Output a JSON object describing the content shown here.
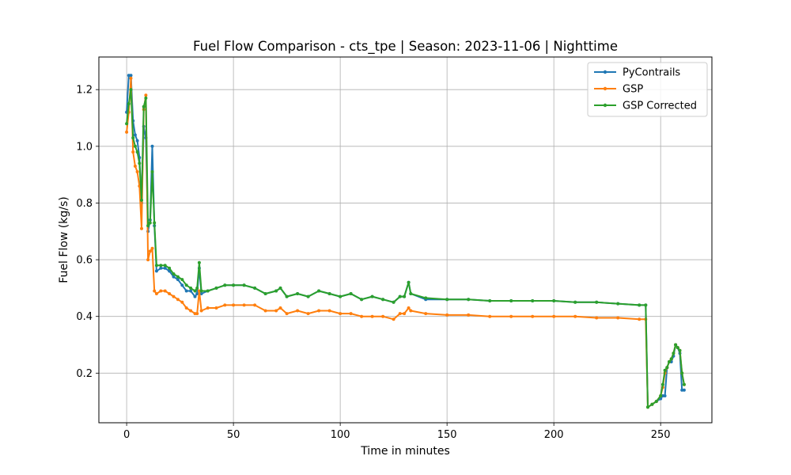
{
  "chart_data": {
    "type": "line",
    "title": "Fuel Flow Comparison - cts_tpe | Season: 2023-11-06 | Nighttime",
    "xlabel": "Time in minutes",
    "ylabel": "Fuel Flow (kg/s)",
    "xlim": [
      -13,
      274
    ],
    "ylim": [
      0.025,
      1.315
    ],
    "xticks": [
      0,
      50,
      100,
      150,
      200,
      250
    ],
    "xtick_labels": [
      "0",
      "50",
      "100",
      "150",
      "200",
      "250"
    ],
    "yticks": [
      0.2,
      0.4,
      0.6,
      0.8,
      1.0,
      1.2
    ],
    "ytick_labels": [
      "0.2",
      "0.4",
      "0.6",
      "0.8",
      "1.0",
      "1.2"
    ],
    "grid": true,
    "legend_position": "top-right",
    "series": [
      {
        "name": "PyContrails",
        "color": "#1f77b4",
        "points": [
          [
            0,
            1.12
          ],
          [
            1,
            1.25
          ],
          [
            2,
            1.25
          ],
          [
            3,
            1.09
          ],
          [
            4,
            1.04
          ],
          [
            5,
            1.02
          ],
          [
            6,
            0.96
          ],
          [
            7,
            0.8
          ],
          [
            8,
            1.07
          ],
          [
            9,
            1.03
          ],
          [
            10,
            0.7
          ],
          [
            11,
            0.74
          ],
          [
            12,
            1.0
          ],
          [
            13,
            0.72
          ],
          [
            14,
            0.56
          ],
          [
            16,
            0.57
          ],
          [
            18,
            0.57
          ],
          [
            20,
            0.56
          ],
          [
            22,
            0.54
          ],
          [
            24,
            0.53
          ],
          [
            26,
            0.51
          ],
          [
            28,
            0.49
          ],
          [
            30,
            0.49
          ],
          [
            32,
            0.47
          ],
          [
            33,
            0.48
          ],
          [
            34,
            0.57
          ],
          [
            35,
            0.48
          ],
          [
            38,
            0.49
          ],
          [
            42,
            0.5
          ],
          [
            46,
            0.51
          ],
          [
            50,
            0.51
          ],
          [
            55,
            0.51
          ],
          [
            60,
            0.5
          ],
          [
            65,
            0.48
          ],
          [
            70,
            0.49
          ],
          [
            72,
            0.5
          ],
          [
            75,
            0.47
          ],
          [
            80,
            0.48
          ],
          [
            85,
            0.47
          ],
          [
            90,
            0.49
          ],
          [
            95,
            0.48
          ],
          [
            100,
            0.47
          ],
          [
            105,
            0.48
          ],
          [
            110,
            0.46
          ],
          [
            115,
            0.47
          ],
          [
            120,
            0.46
          ],
          [
            125,
            0.45
          ],
          [
            128,
            0.47
          ],
          [
            130,
            0.47
          ],
          [
            132,
            0.52
          ],
          [
            133,
            0.48
          ],
          [
            140,
            0.46
          ],
          [
            150,
            0.46
          ],
          [
            160,
            0.46
          ],
          [
            170,
            0.455
          ],
          [
            180,
            0.455
          ],
          [
            190,
            0.455
          ],
          [
            200,
            0.455
          ],
          [
            210,
            0.45
          ],
          [
            220,
            0.45
          ],
          [
            230,
            0.445
          ],
          [
            240,
            0.44
          ],
          [
            243,
            0.44
          ],
          [
            244,
            0.08
          ],
          [
            246,
            0.09
          ],
          [
            248,
            0.1
          ],
          [
            250,
            0.11
          ],
          [
            251,
            0.12
          ],
          [
            252,
            0.12
          ],
          [
            253,
            0.22
          ],
          [
            254,
            0.24
          ],
          [
            255,
            0.24
          ],
          [
            256,
            0.26
          ],
          [
            257,
            0.3
          ],
          [
            258,
            0.29
          ],
          [
            259,
            0.27
          ],
          [
            260,
            0.14
          ],
          [
            261,
            0.14
          ]
        ]
      },
      {
        "name": "GSP",
        "color": "#ff7f0e",
        "points": [
          [
            0,
            1.05
          ],
          [
            1,
            1.12
          ],
          [
            2,
            1.24
          ],
          [
            3,
            0.98
          ],
          [
            4,
            0.93
          ],
          [
            5,
            0.91
          ],
          [
            6,
            0.86
          ],
          [
            7,
            0.71
          ],
          [
            8,
            1.13
          ],
          [
            9,
            1.18
          ],
          [
            10,
            0.6
          ],
          [
            11,
            0.63
          ],
          [
            12,
            0.64
          ],
          [
            13,
            0.49
          ],
          [
            14,
            0.48
          ],
          [
            16,
            0.49
          ],
          [
            18,
            0.49
          ],
          [
            20,
            0.48
          ],
          [
            22,
            0.47
          ],
          [
            24,
            0.46
          ],
          [
            26,
            0.45
          ],
          [
            28,
            0.43
          ],
          [
            30,
            0.42
          ],
          [
            32,
            0.41
          ],
          [
            33,
            0.41
          ],
          [
            34,
            0.49
          ],
          [
            35,
            0.42
          ],
          [
            38,
            0.43
          ],
          [
            42,
            0.43
          ],
          [
            46,
            0.44
          ],
          [
            50,
            0.44
          ],
          [
            55,
            0.44
          ],
          [
            60,
            0.44
          ],
          [
            65,
            0.42
          ],
          [
            70,
            0.42
          ],
          [
            72,
            0.43
          ],
          [
            75,
            0.41
          ],
          [
            80,
            0.42
          ],
          [
            85,
            0.41
          ],
          [
            90,
            0.42
          ],
          [
            95,
            0.42
          ],
          [
            100,
            0.41
          ],
          [
            105,
            0.41
          ],
          [
            110,
            0.4
          ],
          [
            115,
            0.4
          ],
          [
            120,
            0.4
          ],
          [
            125,
            0.39
          ],
          [
            128,
            0.41
          ],
          [
            130,
            0.41
          ],
          [
            132,
            0.43
          ],
          [
            133,
            0.42
          ],
          [
            140,
            0.41
          ],
          [
            150,
            0.405
          ],
          [
            160,
            0.405
          ],
          [
            170,
            0.4
          ],
          [
            180,
            0.4
          ],
          [
            190,
            0.4
          ],
          [
            200,
            0.4
          ],
          [
            210,
            0.4
          ],
          [
            220,
            0.395
          ],
          [
            230,
            0.395
          ],
          [
            240,
            0.39
          ],
          [
            243,
            0.39
          ],
          [
            244,
            0.08
          ],
          [
            246,
            0.09
          ],
          [
            248,
            0.1
          ],
          [
            250,
            0.12
          ],
          [
            251,
            0.15
          ],
          [
            252,
            0.2
          ],
          [
            253,
            0.22
          ],
          [
            254,
            0.24
          ],
          [
            255,
            0.25
          ],
          [
            256,
            0.27
          ],
          [
            257,
            0.3
          ],
          [
            258,
            0.29
          ],
          [
            259,
            0.28
          ],
          [
            260,
            0.2
          ],
          [
            261,
            0.16
          ]
        ]
      },
      {
        "name": "GSP Corrected",
        "color": "#2ca02c",
        "points": [
          [
            0,
            1.08
          ],
          [
            1,
            1.15
          ],
          [
            2,
            1.2
          ],
          [
            3,
            1.03
          ],
          [
            4,
            1.0
          ],
          [
            5,
            0.98
          ],
          [
            6,
            0.94
          ],
          [
            7,
            0.81
          ],
          [
            8,
            1.14
          ],
          [
            9,
            1.17
          ],
          [
            10,
            0.72
          ],
          [
            11,
            0.73
          ],
          [
            12,
            0.91
          ],
          [
            13,
            0.73
          ],
          [
            14,
            0.58
          ],
          [
            16,
            0.58
          ],
          [
            18,
            0.58
          ],
          [
            20,
            0.57
          ],
          [
            22,
            0.55
          ],
          [
            24,
            0.54
          ],
          [
            26,
            0.53
          ],
          [
            28,
            0.51
          ],
          [
            30,
            0.5
          ],
          [
            32,
            0.49
          ],
          [
            33,
            0.5
          ],
          [
            34,
            0.59
          ],
          [
            35,
            0.49
          ],
          [
            38,
            0.49
          ],
          [
            42,
            0.5
          ],
          [
            46,
            0.51
          ],
          [
            50,
            0.51
          ],
          [
            55,
            0.51
          ],
          [
            60,
            0.5
          ],
          [
            65,
            0.48
          ],
          [
            70,
            0.49
          ],
          [
            72,
            0.5
          ],
          [
            75,
            0.47
          ],
          [
            80,
            0.48
          ],
          [
            85,
            0.47
          ],
          [
            90,
            0.49
          ],
          [
            95,
            0.48
          ],
          [
            100,
            0.47
          ],
          [
            105,
            0.48
          ],
          [
            110,
            0.46
          ],
          [
            115,
            0.47
          ],
          [
            120,
            0.46
          ],
          [
            125,
            0.45
          ],
          [
            128,
            0.47
          ],
          [
            130,
            0.47
          ],
          [
            132,
            0.52
          ],
          [
            133,
            0.48
          ],
          [
            140,
            0.465
          ],
          [
            150,
            0.46
          ],
          [
            160,
            0.46
          ],
          [
            170,
            0.455
          ],
          [
            180,
            0.455
          ],
          [
            190,
            0.455
          ],
          [
            200,
            0.455
          ],
          [
            210,
            0.45
          ],
          [
            220,
            0.45
          ],
          [
            230,
            0.445
          ],
          [
            240,
            0.44
          ],
          [
            243,
            0.44
          ],
          [
            244,
            0.08
          ],
          [
            246,
            0.09
          ],
          [
            248,
            0.1
          ],
          [
            250,
            0.12
          ],
          [
            251,
            0.16
          ],
          [
            252,
            0.21
          ],
          [
            253,
            0.22
          ],
          [
            254,
            0.24
          ],
          [
            255,
            0.25
          ],
          [
            256,
            0.27
          ],
          [
            257,
            0.3
          ],
          [
            258,
            0.29
          ],
          [
            259,
            0.28
          ],
          [
            260,
            0.2
          ],
          [
            261,
            0.16
          ]
        ]
      }
    ]
  }
}
